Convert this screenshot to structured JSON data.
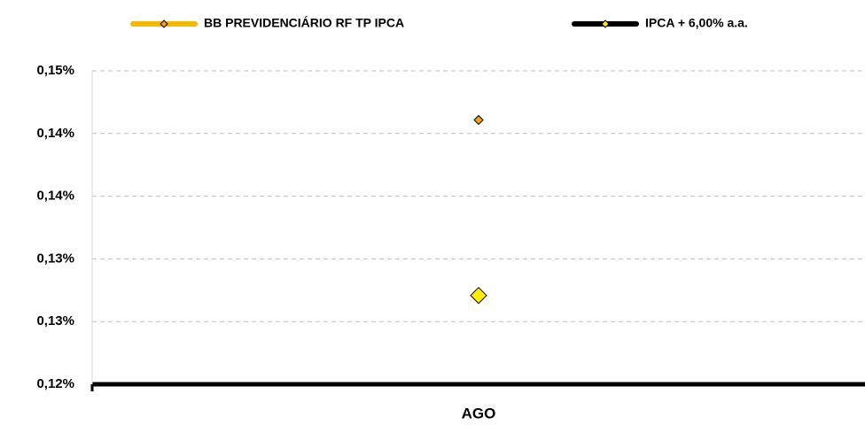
{
  "chart_data": {
    "type": "line",
    "categories": [
      "AGO"
    ],
    "series": [
      {
        "name": "BB PREVIDENCIÁRIO RF TP IPCA",
        "color": "#f5b800",
        "marker_color": "#f5a300",
        "values": [
          0.1453
        ]
      },
      {
        "name": "IPCA + 6,00% a.a.",
        "color": "#000000",
        "marker_color": "#ffee00",
        "values": [
          0.1285
        ]
      }
    ],
    "ylim": [
      0.12,
      0.15
    ],
    "yticks": [
      {
        "value": 0.12,
        "label": "0,12%"
      },
      {
        "value": 0.126,
        "label": "0,13%"
      },
      {
        "value": 0.132,
        "label": "0,13%"
      },
      {
        "value": 0.138,
        "label": "0,14%"
      },
      {
        "value": 0.144,
        "label": "0,14%"
      },
      {
        "value": 0.15,
        "label": "0,15%"
      }
    ],
    "grid": true,
    "legend": "top"
  }
}
